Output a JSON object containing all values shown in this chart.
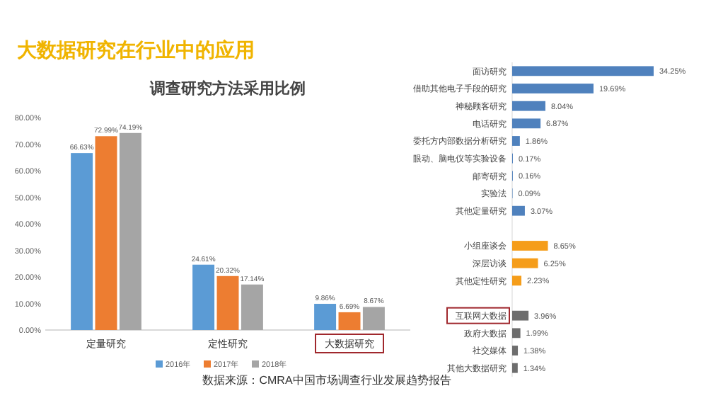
{
  "chart_data": [
    {
      "type": "bar",
      "title": "大数据研究在行业中的应用",
      "subtitle": "调查研究方法采用比例",
      "categories": [
        "定量研究",
        "定性研究",
        "大数据研究"
      ],
      "series": [
        {
          "name": "2016年",
          "color": "#5b9bd5",
          "values": [
            66.63,
            24.61,
            9.86
          ],
          "value_labels": [
            "66.63%",
            "24.61%",
            "9.86%"
          ]
        },
        {
          "name": "2017年",
          "color": "#ed7d31",
          "values": [
            72.99,
            20.32,
            6.69
          ],
          "value_labels": [
            "72.99%",
            "20.32%",
            "6.69%"
          ]
        },
        {
          "name": "2018年",
          "color": "#a5a5a5",
          "values": [
            74.19,
            17.14,
            8.67
          ],
          "value_labels": [
            "74.19%",
            "17.14%",
            "8.67%"
          ]
        }
      ],
      "ylim": [
        0,
        80
      ],
      "yticks": [
        {
          "value": 0,
          "label": "0.00%"
        },
        {
          "value": 10,
          "label": "10.00%"
        },
        {
          "value": 20,
          "label": "20.00%"
        },
        {
          "value": 30,
          "label": "30.00%"
        },
        {
          "value": 40,
          "label": "40.00%"
        },
        {
          "value": 50,
          "label": "50.00%"
        },
        {
          "value": 60,
          "label": "60.00%"
        },
        {
          "value": 70,
          "label": "70.00%"
        },
        {
          "value": 80,
          "label": "80.00%"
        }
      ],
      "legend": "bottom",
      "grid": false,
      "annotations": [
        "数据来源：CMRA中国市场调查行业发展趋势报告"
      ]
    },
    {
      "type": "bar",
      "orientation": "horizontal",
      "categories": [
        "面访研究",
        "借助其他电子手段的研究",
        "神秘顾客研究",
        "电话研究",
        "委托方内部数据分析研究",
        "眼动、脑电仪等实验设备",
        "邮寄研究",
        "实验法",
        "其他定量研究",
        null,
        "小组座谈会",
        "深层访谈",
        "其他定性研究",
        null,
        "互联网大数据",
        "政府大数据",
        "社交媒体",
        "其他大数据研究"
      ],
      "values": [
        34.25,
        19.69,
        8.04,
        6.87,
        1.86,
        0.17,
        0.16,
        0.09,
        3.07,
        null,
        8.65,
        6.25,
        2.23,
        null,
        3.96,
        1.99,
        1.38,
        1.34
      ],
      "colors": [
        "#4f81bd",
        "#4f81bd",
        "#4f81bd",
        "#4f81bd",
        "#4f81bd",
        "#4f81bd",
        "#4f81bd",
        "#4f81bd",
        "#4f81bd",
        null,
        "#f59d1a",
        "#f59d1a",
        "#f59d1a",
        null,
        "#6d6d6d",
        "#6d6d6d",
        "#6d6d6d",
        "#6d6d6d"
      ],
      "value_labels": [
        "34.25%",
        "19.69%",
        "8.04%",
        "6.87%",
        "1.86%",
        "0.17%",
        "0.16%",
        "0.09%",
        "3.07%",
        null,
        "8.65%",
        "6.25%",
        "2.23%",
        null,
        "3.96%",
        "1.99%",
        "1.38%",
        "1.34%"
      ],
      "data_labels": false
    }
  ]
}
